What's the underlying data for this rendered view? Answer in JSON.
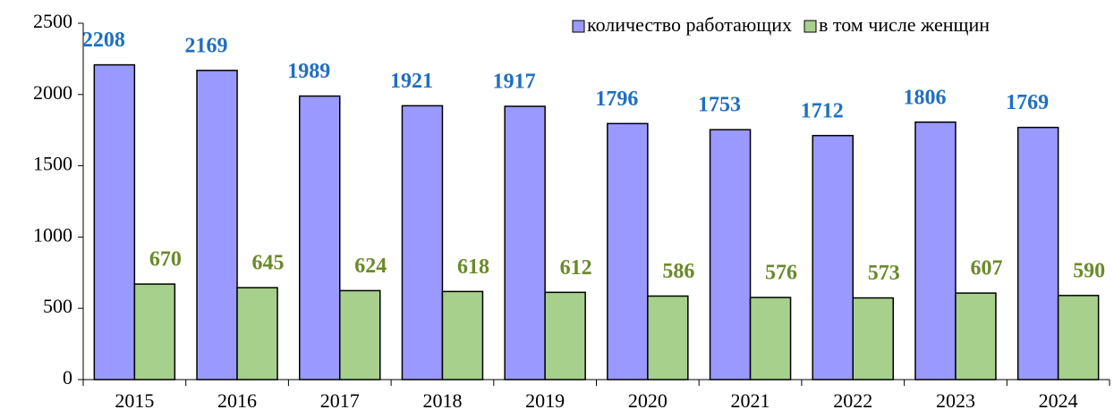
{
  "chart_data": {
    "type": "bar",
    "categories": [
      "2015",
      "2016",
      "2017",
      "2018",
      "2019",
      "2020",
      "2021",
      "2022",
      "2023",
      "2024"
    ],
    "series": [
      {
        "name": "количество работающих",
        "color": "#9999ff",
        "label_color": "#1f6fc0",
        "values": [
          2208,
          2169,
          1989,
          1921,
          1917,
          1796,
          1753,
          1712,
          1806,
          1769
        ]
      },
      {
        "name": "в том числе женщин",
        "color": "#a6d08c",
        "label_color": "#6a8a2a",
        "values": [
          670,
          645,
          624,
          618,
          612,
          586,
          576,
          573,
          607,
          590
        ]
      }
    ],
    "ylim": [
      0,
      2500
    ],
    "yticks": [
      0,
      500,
      1000,
      1500,
      2000,
      2500
    ],
    "grid": false,
    "legend": "top-right"
  }
}
